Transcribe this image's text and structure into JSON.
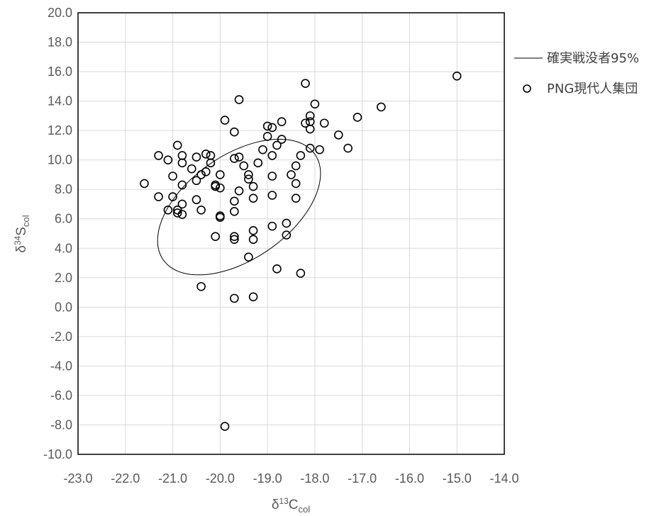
{
  "chart_data": {
    "type": "scatter",
    "xlabel": {
      "main": "δ",
      "sup": "13",
      "letter": "C",
      "sub": "col"
    },
    "ylabel": {
      "main": "δ",
      "sup": "34",
      "letter": "S",
      "sub": "col"
    },
    "xlim": [
      -23.0,
      -14.0
    ],
    "ylim": [
      -10.0,
      20.0
    ],
    "x_ticks": [
      -23.0,
      -22.0,
      -21.0,
      -20.0,
      -19.0,
      -18.0,
      -17.0,
      -16.0,
      -15.0,
      -14.0
    ],
    "y_ticks": [
      20.0,
      18.0,
      16.0,
      14.0,
      12.0,
      10.0,
      8.0,
      6.0,
      4.0,
      2.0,
      0.0,
      -2.0,
      -4.0,
      -6.0,
      -8.0,
      -10.0
    ],
    "x_tick_labels": [
      "-23.0",
      "-22.0",
      "-21.0",
      "-20.0",
      "-19.0",
      "-18.0",
      "-17.0",
      "-16.0",
      "-15.0",
      "-14.0"
    ],
    "y_tick_labels": [
      "20.0",
      "18.0",
      "16.0",
      "14.0",
      "12.0",
      "10.0",
      "8.0",
      "6.0",
      "4.0",
      "2.0",
      "0.0",
      "-2.0",
      "-4.0",
      "-6.0",
      "-8.0",
      "-10.0"
    ],
    "grid": true,
    "legend_position": "right",
    "series": [
      {
        "name": "確実戦没者95%",
        "kind": "ellipse",
        "color": "#000000",
        "center": [
          -19.6,
          6.8
        ],
        "semi_axes": [
          2.0,
          3.5
        ],
        "rotation_deg": 38
      },
      {
        "name": "PNG現代人集団",
        "kind": "points",
        "marker": "open-circle",
        "color": "#000000",
        "points": [
          [
            -15.0,
            15.7
          ],
          [
            -18.2,
            15.2
          ],
          [
            -19.6,
            14.1
          ],
          [
            -18.0,
            13.8
          ],
          [
            -16.6,
            13.6
          ],
          [
            -18.1,
            13.0
          ],
          [
            -17.1,
            12.9
          ],
          [
            -19.9,
            12.7
          ],
          [
            -18.7,
            12.6
          ],
          [
            -18.1,
            12.6
          ],
          [
            -18.2,
            12.5
          ],
          [
            -17.8,
            12.5
          ],
          [
            -19.0,
            12.3
          ],
          [
            -18.9,
            12.2
          ],
          [
            -18.1,
            12.1
          ],
          [
            -19.7,
            11.9
          ],
          [
            -17.5,
            11.7
          ],
          [
            -19.0,
            11.6
          ],
          [
            -18.7,
            11.4
          ],
          [
            -20.9,
            11.0
          ],
          [
            -18.8,
            11.0
          ],
          [
            -17.3,
            10.8
          ],
          [
            -18.1,
            10.8
          ],
          [
            -17.9,
            10.7
          ],
          [
            -19.1,
            10.7
          ],
          [
            -20.3,
            10.4
          ],
          [
            -21.3,
            10.3
          ],
          [
            -20.8,
            10.3
          ],
          [
            -20.2,
            10.3
          ],
          [
            -18.9,
            10.3
          ],
          [
            -18.3,
            10.3
          ],
          [
            -20.5,
            10.2
          ],
          [
            -19.6,
            10.2
          ],
          [
            -19.7,
            10.1
          ],
          [
            -21.1,
            10.0
          ],
          [
            -20.8,
            9.8
          ],
          [
            -20.2,
            9.8
          ],
          [
            -19.2,
            9.8
          ],
          [
            -19.5,
            9.6
          ],
          [
            -18.4,
            9.6
          ],
          [
            -20.6,
            9.4
          ],
          [
            -20.3,
            9.2
          ],
          [
            -20.4,
            9.0
          ],
          [
            -20.0,
            9.0
          ],
          [
            -19.4,
            9.0
          ],
          [
            -18.5,
            9.0
          ],
          [
            -21.0,
            8.9
          ],
          [
            -18.9,
            8.9
          ],
          [
            -19.4,
            8.7
          ],
          [
            -20.5,
            8.6
          ],
          [
            -18.4,
            8.4
          ],
          [
            -21.6,
            8.4
          ],
          [
            -20.8,
            8.3
          ],
          [
            -20.1,
            8.3
          ],
          [
            -20.1,
            8.2
          ],
          [
            -20.0,
            8.1
          ],
          [
            -19.3,
            8.2
          ],
          [
            -19.6,
            7.9
          ],
          [
            -18.9,
            7.6
          ],
          [
            -21.0,
            7.5
          ],
          [
            -21.3,
            7.5
          ],
          [
            -19.3,
            7.4
          ],
          [
            -18.4,
            7.4
          ],
          [
            -20.5,
            7.3
          ],
          [
            -19.7,
            7.2
          ],
          [
            -20.8,
            7.0
          ],
          [
            -21.1,
            6.6
          ],
          [
            -20.9,
            6.6
          ],
          [
            -20.4,
            6.6
          ],
          [
            -19.7,
            6.5
          ],
          [
            -20.9,
            6.4
          ],
          [
            -20.8,
            6.3
          ],
          [
            -20.0,
            6.2
          ],
          [
            -20.0,
            6.1
          ],
          [
            -18.6,
            5.7
          ],
          [
            -18.9,
            5.5
          ],
          [
            -19.3,
            5.2
          ],
          [
            -18.6,
            4.9
          ],
          [
            -20.1,
            4.8
          ],
          [
            -19.7,
            4.8
          ],
          [
            -19.7,
            4.6
          ],
          [
            -19.3,
            4.6
          ],
          [
            -19.4,
            3.4
          ],
          [
            -18.8,
            2.6
          ],
          [
            -18.3,
            2.3
          ],
          [
            -20.4,
            1.4
          ],
          [
            -19.3,
            0.7
          ],
          [
            -19.7,
            0.6
          ],
          [
            -19.9,
            -8.1
          ]
        ]
      }
    ]
  }
}
